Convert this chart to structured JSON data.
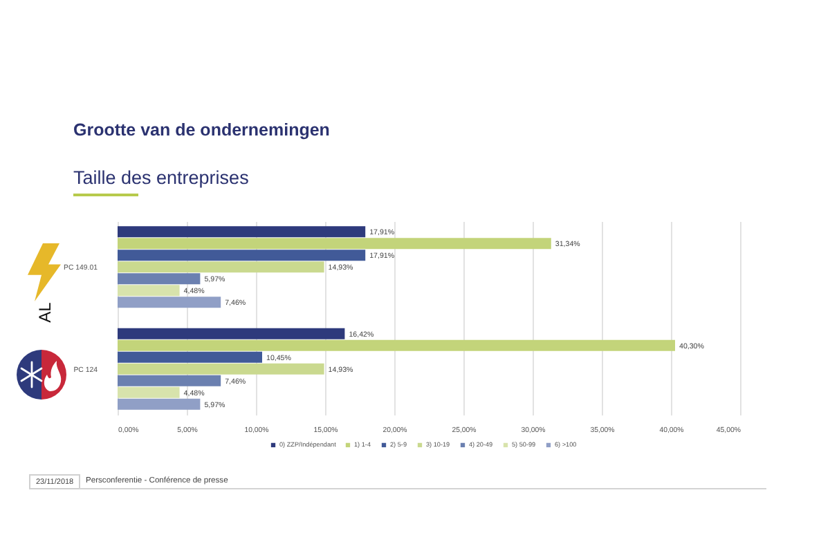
{
  "chart_data": {
    "type": "bar",
    "orientation": "horizontal",
    "title": "Grootte van de ondernemingen",
    "subtitle": "Taille des entreprises",
    "categories": [
      "PC 149.01",
      "PC 124"
    ],
    "series": [
      {
        "name": "0) ZZP/Indépendant",
        "color": "#2e3a7c",
        "values": [
          17.91,
          16.42
        ],
        "value_labels": [
          "17,91%",
          "16,42%"
        ]
      },
      {
        "name": "1) 1-4",
        "color": "#c3d47a",
        "values": [
          31.34,
          40.3
        ],
        "value_labels": [
          "31,34%",
          "40,30%"
        ]
      },
      {
        "name": "2) 5-9",
        "color": "#415a98",
        "values": [
          17.91,
          10.45
        ],
        "value_labels": [
          "17,91%",
          "10,45%"
        ]
      },
      {
        "name": "3) 10-19",
        "color": "#cad98f",
        "values": [
          14.93,
          14.93
        ],
        "value_labels": [
          "14,93%",
          "14,93%"
        ]
      },
      {
        "name": "4) 20-49",
        "color": "#6b80b0",
        "values": [
          5.97,
          7.46
        ],
        "value_labels": [
          "5,97%",
          "7,46%"
        ]
      },
      {
        "name": "5) 50-99",
        "color": "#d8e3ac",
        "values": [
          4.48,
          4.48
        ],
        "value_labels": [
          "4,48%",
          "4,48%"
        ]
      },
      {
        "name": "6) >100",
        "color": "#909fc6",
        "values": [
          7.46,
          5.97
        ],
        "value_labels": [
          "7,46%",
          "5,97%"
        ]
      }
    ],
    "xlim": [
      0,
      45
    ],
    "xticks": [
      {
        "value": 0,
        "label": "0,00%"
      },
      {
        "value": 5,
        "label": "5,00%"
      },
      {
        "value": 10,
        "label": "10,00%"
      },
      {
        "value": 15,
        "label": "15,00%"
      },
      {
        "value": 20,
        "label": "20,00%"
      },
      {
        "value": 25,
        "label": "25,00%"
      },
      {
        "value": 30,
        "label": "30,00%"
      },
      {
        "value": 35,
        "label": "35,00%"
      },
      {
        "value": 40,
        "label": "40,00%"
      },
      {
        "value": 45,
        "label": "45,00%"
      }
    ],
    "grid": "x",
    "legend": "bottom",
    "annotations": [
      "AL",
      "23/11/2018",
      "Persconferentie - Conférence de presse"
    ]
  }
}
